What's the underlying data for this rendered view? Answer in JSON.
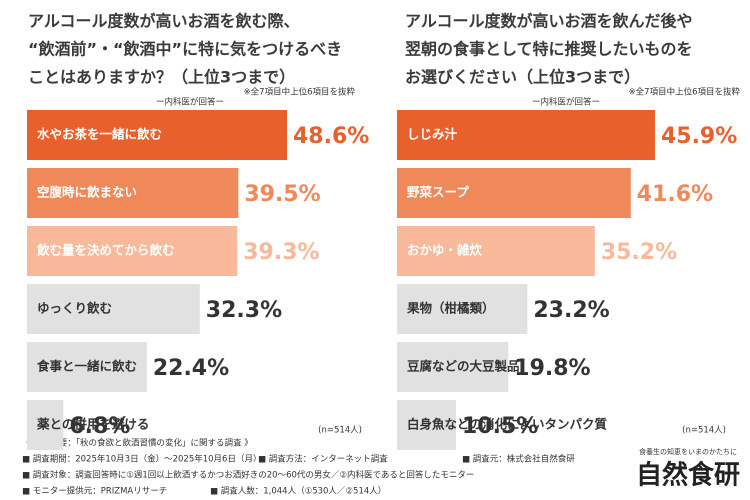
{
  "chart_data": [
    {
      "type": "bar",
      "orientation": "horizontal",
      "title": [
        "アルコール度数が高いお酒を飲む際、",
        "“飲酒前”・“飲酒中”に特に気をつけるべき",
        "ことはありますか？（上位3つまで）"
      ],
      "note": "※全7項目中上位6項目を抜粋",
      "subtitle": "ー内科医が回答ー",
      "categories": [
        "水やお茶を一緒に飲む",
        "空腹時に飲まない",
        "飲む量を決めてから飲む",
        "ゆっくり飲む",
        "食事と一緒に飲む",
        "薬との併用を避ける"
      ],
      "values": [
        48.6,
        39.5,
        39.3,
        32.3,
        22.4,
        6.8
      ],
      "value_labels": [
        "48.6%",
        "39.5%",
        "39.3%",
        "32.3%",
        "22.4%",
        "6.8%"
      ],
      "colors": [
        "#e8612c",
        "#f0895a",
        "#f8b99b",
        "#e1e1e1",
        "#e1e1e1",
        "#e1e1e1"
      ],
      "sample_note": "(n=514人)"
    },
    {
      "type": "bar",
      "orientation": "horizontal",
      "title": [
        "アルコール度数が高いお酒を飲んだ後や",
        "翌朝の食事として特に推奨したいものを",
        "お選びください（上位3つまで）"
      ],
      "note": "※全7項目中上位6項目を抜粋",
      "subtitle": "ー内科医が回答ー",
      "categories": [
        "しじみ汁",
        "野菜スープ",
        "おかゆ・雑炊",
        "果物（柑橘類）",
        "豆腐などの大豆製品",
        "白身魚などの消化によいタンパク質"
      ],
      "values": [
        45.9,
        41.6,
        35.2,
        23.2,
        19.8,
        10.5
      ],
      "value_labels": [
        "45.9%",
        "41.6%",
        "35.2%",
        "23.2%",
        "19.8%",
        "10.5%"
      ],
      "colors": [
        "#e8612c",
        "#f0895a",
        "#f8b99b",
        "#e1e1e1",
        "#e1e1e1",
        "#e1e1e1"
      ],
      "sample_note": "(n=514人)"
    }
  ],
  "footer": {
    "heading": "《 調査概要：「秋の食欲と飲酒習慣の変化」に関する調査 》",
    "period": "■ 調査期間：2025年10月3日（金）～2025年10月6日（月）",
    "method": "■ 調査方法：インターネット調査",
    "source": "■ 調査元：株式会社自然食研",
    "target": "■ 調査対象：調査回答時に①週1回以上飲酒するかつお酒好きの20～60代の男女／②内科医であると回答したモニター",
    "provider": "■ モニター提供元：PRIZMAリサーチ",
    "count": "■ 調査人数：1,044人（①530人／②514人）"
  },
  "logo": {
    "tagline": "食養生の知恵をいまのかたちに",
    "name": "自然食研"
  }
}
